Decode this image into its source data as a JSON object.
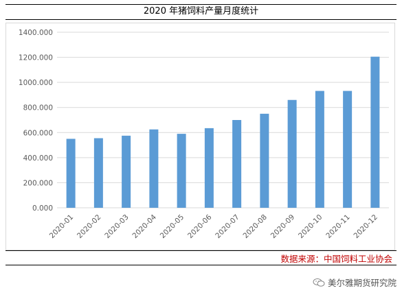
{
  "title": "2020 年猪饲料产量月度统计",
  "source": "数据来源：中国饲料工业协会",
  "watermark": "美尔雅期货研究院",
  "watermark_icon": "wechat-icon",
  "colors": {
    "bar": "#5b9bd5",
    "grid": "#d9d9d9",
    "axis_text": "#595959",
    "source": "#c00000"
  },
  "chart_data": {
    "type": "bar",
    "title": "2020 年猪饲料产量月度统计",
    "xlabel": "",
    "ylabel": "",
    "categories": [
      "2020-01",
      "2020-02",
      "2020-03",
      "2020-04",
      "2020-05",
      "2020-06",
      "2020-07",
      "2020-08",
      "2020-09",
      "2020-10",
      "2020-11",
      "2020-12"
    ],
    "values": [
      550,
      555,
      575,
      625,
      590,
      635,
      700,
      750,
      860,
      932,
      932,
      1205
    ],
    "ylim": [
      0,
      1400
    ],
    "yticks": [
      "0.000",
      "200.000",
      "400.000",
      "600.000",
      "800.000",
      "1000.000",
      "1200.000",
      "1400.000"
    ],
    "grid": true,
    "legend": "none"
  }
}
